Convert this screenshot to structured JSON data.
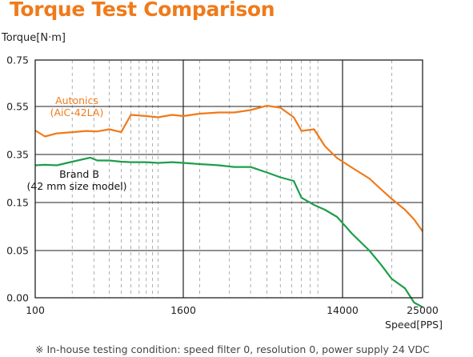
{
  "chart_data": {
    "type": "line",
    "title": "Torque Test Comparison",
    "ylabel": "Torque[N·m]",
    "xlabel": "Speed[PPS]",
    "x_scale": "log",
    "xlim": [
      100,
      25000
    ],
    "ylim": [
      0,
      0.75
    ],
    "y_ticks": [
      {
        "value": 0.0,
        "label": "0.00"
      },
      {
        "value": 0.05,
        "label": "0.05"
      },
      {
        "value": 0.15,
        "label": "0.15"
      },
      {
        "value": 0.35,
        "label": "0.35"
      },
      {
        "value": 0.55,
        "label": "0.55"
      },
      {
        "value": 0.75,
        "label": "0.75"
      }
    ],
    "x_ticks": [
      {
        "value": 100,
        "label": "100"
      },
      {
        "value": 1600,
        "label": "1600"
      },
      {
        "value": 14000,
        "label": "14000"
      },
      {
        "value": 25000,
        "label": "25000"
      }
    ],
    "series": [
      {
        "name": "Autonics (AiC-42LA)",
        "label_lines": [
          "Autonics",
          "(AiC-42LA)"
        ],
        "color": "#f07a1a",
        "points": [
          [
            100,
            0.45
          ],
          [
            120,
            0.425
          ],
          [
            150,
            0.438
          ],
          [
            200,
            0.443
          ],
          [
            260,
            0.448
          ],
          [
            320,
            0.446
          ],
          [
            400,
            0.455
          ],
          [
            500,
            0.443
          ],
          [
            600,
            0.515
          ],
          [
            800,
            0.51
          ],
          [
            1000,
            0.505
          ],
          [
            1300,
            0.515
          ],
          [
            1600,
            0.51
          ],
          [
            2000,
            0.52
          ],
          [
            2600,
            0.525
          ],
          [
            3200,
            0.525
          ],
          [
            4000,
            0.535
          ],
          [
            5000,
            0.553
          ],
          [
            6000,
            0.545
          ],
          [
            7200,
            0.505
          ],
          [
            8000,
            0.448
          ],
          [
            9500,
            0.455
          ],
          [
            11000,
            0.385
          ],
          [
            13000,
            0.335
          ],
          [
            15000,
            0.295
          ],
          [
            17000,
            0.25
          ],
          [
            18500,
            0.205
          ],
          [
            20000,
            0.165
          ],
          [
            22000,
            0.135
          ],
          [
            23500,
            0.115
          ],
          [
            25000,
            0.09
          ]
        ]
      },
      {
        "name": "Brand B (42 mm size model)",
        "label_lines": [
          "Brand B",
          "(42 mm size model)"
        ],
        "color": "#1e9e4a",
        "points": [
          [
            100,
            0.305
          ],
          [
            120,
            0.307
          ],
          [
            150,
            0.305
          ],
          [
            200,
            0.32
          ],
          [
            280,
            0.337
          ],
          [
            320,
            0.325
          ],
          [
            400,
            0.325
          ],
          [
            500,
            0.32
          ],
          [
            600,
            0.318
          ],
          [
            800,
            0.318
          ],
          [
            1000,
            0.315
          ],
          [
            1300,
            0.318
          ],
          [
            1600,
            0.315
          ],
          [
            2000,
            0.31
          ],
          [
            2600,
            0.305
          ],
          [
            3200,
            0.298
          ],
          [
            4000,
            0.298
          ],
          [
            5000,
            0.275
          ],
          [
            6000,
            0.255
          ],
          [
            7200,
            0.24
          ],
          [
            8000,
            0.17
          ],
          [
            9500,
            0.145
          ],
          [
            11000,
            0.135
          ],
          [
            13000,
            0.12
          ],
          [
            15000,
            0.085
          ],
          [
            17000,
            0.05
          ],
          [
            18500,
            0.035
          ],
          [
            20000,
            0.02
          ],
          [
            22000,
            0.01
          ],
          [
            23500,
            -0.005
          ],
          [
            25000,
            -0.01
          ]
        ]
      }
    ],
    "grid": true,
    "footnote": "※ In-house testing condition: speed filter 0, resolution 0, power supply 24 VDC"
  }
}
